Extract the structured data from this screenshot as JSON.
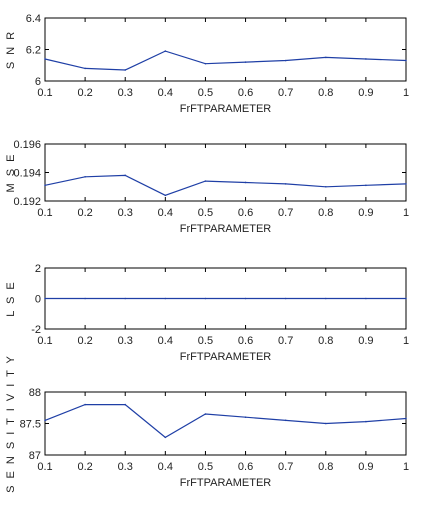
{
  "chart_data": [
    {
      "type": "line",
      "title": "",
      "xlabel": "FrFTPARAMETER",
      "ylabel": "S N R",
      "xlim": [
        0.1,
        1
      ],
      "ylim": [
        6,
        6.4
      ],
      "xticks": [
        "0.1",
        "0.2",
        "0.3",
        "0.4",
        "0.5",
        "0.6",
        "0.7",
        "0.8",
        "0.9",
        "1"
      ],
      "yticks": [
        "6",
        "6.2",
        "6.4"
      ],
      "color": "#1f3fa6",
      "grid": false,
      "series": [
        {
          "x": [
            0.1,
            0.2,
            0.3,
            0.4,
            0.5,
            0.6,
            0.7,
            0.8,
            0.9,
            1
          ],
          "values": [
            6.14,
            6.08,
            6.07,
            6.19,
            6.11,
            6.12,
            6.13,
            6.15,
            6.14,
            6.13
          ]
        }
      ]
    },
    {
      "type": "line",
      "title": "",
      "xlabel": "FrFTPARAMETER",
      "ylabel": "M S E",
      "xlim": [
        0.1,
        1
      ],
      "ylim": [
        0.192,
        0.196
      ],
      "xticks": [
        "0.1",
        "0.2",
        "0.3",
        "0.4",
        "0.5",
        "0.6",
        "0.7",
        "0.8",
        "0.9",
        "1"
      ],
      "yticks": [
        "0.192",
        "0.194",
        "0.196"
      ],
      "color": "#1f3fa6",
      "grid": false,
      "series": [
        {
          "x": [
            0.1,
            0.2,
            0.3,
            0.4,
            0.5,
            0.6,
            0.7,
            0.8,
            0.9,
            1
          ],
          "values": [
            0.1931,
            0.1937,
            0.1938,
            0.1924,
            0.1934,
            0.1933,
            0.1932,
            0.193,
            0.1931,
            0.1932
          ]
        }
      ]
    },
    {
      "type": "line",
      "title": "",
      "xlabel": "FrFTPARAMETER",
      "ylabel": "L S E",
      "xlim": [
        0.1,
        1
      ],
      "ylim": [
        -2,
        2
      ],
      "xticks": [
        "0.1",
        "0.2",
        "0.3",
        "0.4",
        "0.5",
        "0.6",
        "0.7",
        "0.8",
        "0.9",
        "1"
      ],
      "yticks": [
        "-2",
        "0",
        "2"
      ],
      "color": "#1f3fa6",
      "grid": false,
      "series": [
        {
          "x": [
            0.1,
            0.2,
            0.3,
            0.4,
            0.5,
            0.6,
            0.7,
            0.8,
            0.9,
            1
          ],
          "values": [
            0,
            0,
            0,
            0,
            0,
            0,
            0,
            0,
            0,
            0
          ]
        }
      ]
    },
    {
      "type": "line",
      "title": "",
      "xlabel": "FrFTPARAMETER",
      "ylabel": "S E N S I T I V I T Y",
      "xlim": [
        0.1,
        1
      ],
      "ylim": [
        87,
        88
      ],
      "xticks": [
        "0.1",
        "0.2",
        "0.3",
        "0.4",
        "0.5",
        "0.6",
        "0.7",
        "0.8",
        "0.9",
        "1"
      ],
      "yticks": [
        "87",
        "87.5",
        "88"
      ],
      "color": "#1f3fa6",
      "grid": false,
      "series": [
        {
          "x": [
            0.1,
            0.2,
            0.3,
            0.4,
            0.5,
            0.6,
            0.7,
            0.8,
            0.9,
            1
          ],
          "values": [
            87.55,
            87.8,
            87.8,
            87.28,
            87.65,
            87.6,
            87.55,
            87.5,
            87.53,
            87.58
          ]
        }
      ]
    }
  ]
}
